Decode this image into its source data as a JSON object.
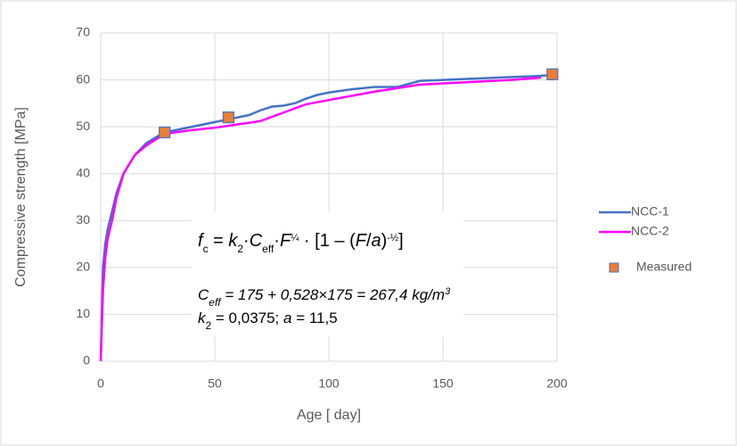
{
  "chart_data": {
    "type": "line",
    "x_label": "Age [ day]",
    "y_label": "Compressive strength [MPa]",
    "xlim": [
      0,
      200
    ],
    "xticks": [
      0,
      50,
      100,
      150,
      200
    ],
    "ylim": [
      0,
      70
    ],
    "yticks": [
      0,
      10,
      20,
      30,
      40,
      50,
      60,
      70
    ],
    "grid": true,
    "legend": "right",
    "series": [
      {
        "name": "NCC-1",
        "type": "line",
        "color": "#4472c4",
        "x": [
          0,
          0.5,
          1,
          2,
          3,
          4,
          5,
          7,
          10,
          15,
          20,
          25,
          28,
          30,
          35,
          40,
          45,
          50,
          55,
          60,
          65,
          70,
          75,
          80,
          85,
          90,
          95,
          100,
          110,
          120,
          130,
          140,
          150,
          160,
          170,
          180,
          190,
          197
        ],
        "values": [
          0,
          10,
          20,
          25,
          28,
          30,
          32,
          36,
          40,
          44,
          46.5,
          48,
          48.8,
          49,
          49.5,
          50,
          50.5,
          51,
          51.5,
          52,
          52.5,
          53.5,
          54.3,
          54.5,
          55,
          56,
          56.8,
          57.3,
          58,
          58.5,
          58.5,
          59.8,
          60,
          60.2,
          60.4,
          60.6,
          60.8,
          61
        ]
      },
      {
        "name": "NCC-2",
        "type": "line",
        "color": "#ff00ff",
        "x": [
          0,
          1,
          2,
          3,
          5,
          7,
          10,
          15,
          20,
          28,
          40,
          50,
          60,
          70,
          80,
          90,
          100,
          120,
          140,
          160,
          180,
          193
        ],
        "values": [
          0,
          15,
          22,
          26,
          30,
          35,
          40,
          44,
          46,
          48.5,
          49.3,
          49.8,
          50.5,
          51.2,
          53,
          54.8,
          55.7,
          57.5,
          59,
          59.5,
          60,
          60.5
        ]
      },
      {
        "name": "Measured",
        "type": "scatter",
        "color": "#ed7d31",
        "x": [
          28,
          56,
          198
        ],
        "values": [
          48.8,
          52,
          61.2
        ]
      }
    ],
    "annotations": [
      [
        "f",
        "c",
        " = ",
        "k",
        "2",
        "·",
        "C",
        "eff",
        "·",
        "F",
        "¼",
        " · [1 – (",
        "F",
        "/",
        "a",
        ")",
        "-½",
        "]"
      ],
      [
        "C",
        "eff",
        " = 175 + 0,528×175 = 267,4 kg/m",
        "3"
      ],
      [
        "k",
        "2",
        " = 0,0375; ",
        "a",
        " = 11,5"
      ]
    ]
  }
}
